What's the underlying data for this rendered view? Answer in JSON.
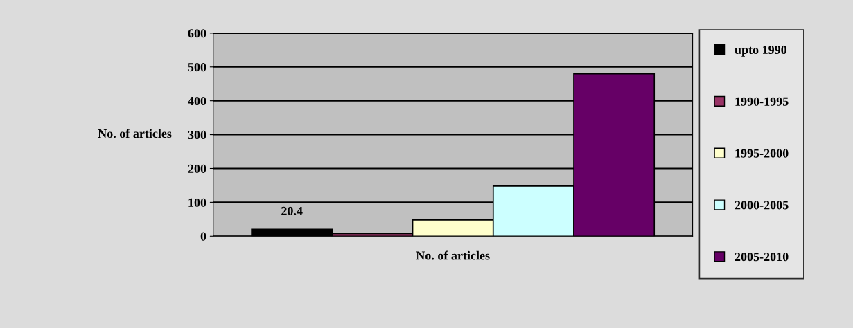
{
  "chart_data": {
    "type": "bar",
    "categories": [
      null
    ],
    "xlabel": "No. of articles",
    "ylabel": "No. of articles",
    "series": [
      {
        "name": "upto 1990",
        "color": "#000000",
        "values": [
          20.4
        ],
        "value_labels": [
          "20.4"
        ]
      },
      {
        "name": "1990-1995",
        "color": "#993366",
        "values": [
          8
        ]
      },
      {
        "name": "1995-2000",
        "color": "#ffffcc",
        "values": [
          48
        ]
      },
      {
        "name": "2000-2005",
        "color": "#ccffff",
        "values": [
          148
        ]
      },
      {
        "name": "2005-2010",
        "color": "#660066",
        "values": [
          480
        ]
      }
    ],
    "ylim": [
      0,
      600
    ],
    "yticks": [
      0,
      100,
      200,
      300,
      400,
      500,
      600
    ],
    "grid": "y",
    "legend": "right"
  }
}
